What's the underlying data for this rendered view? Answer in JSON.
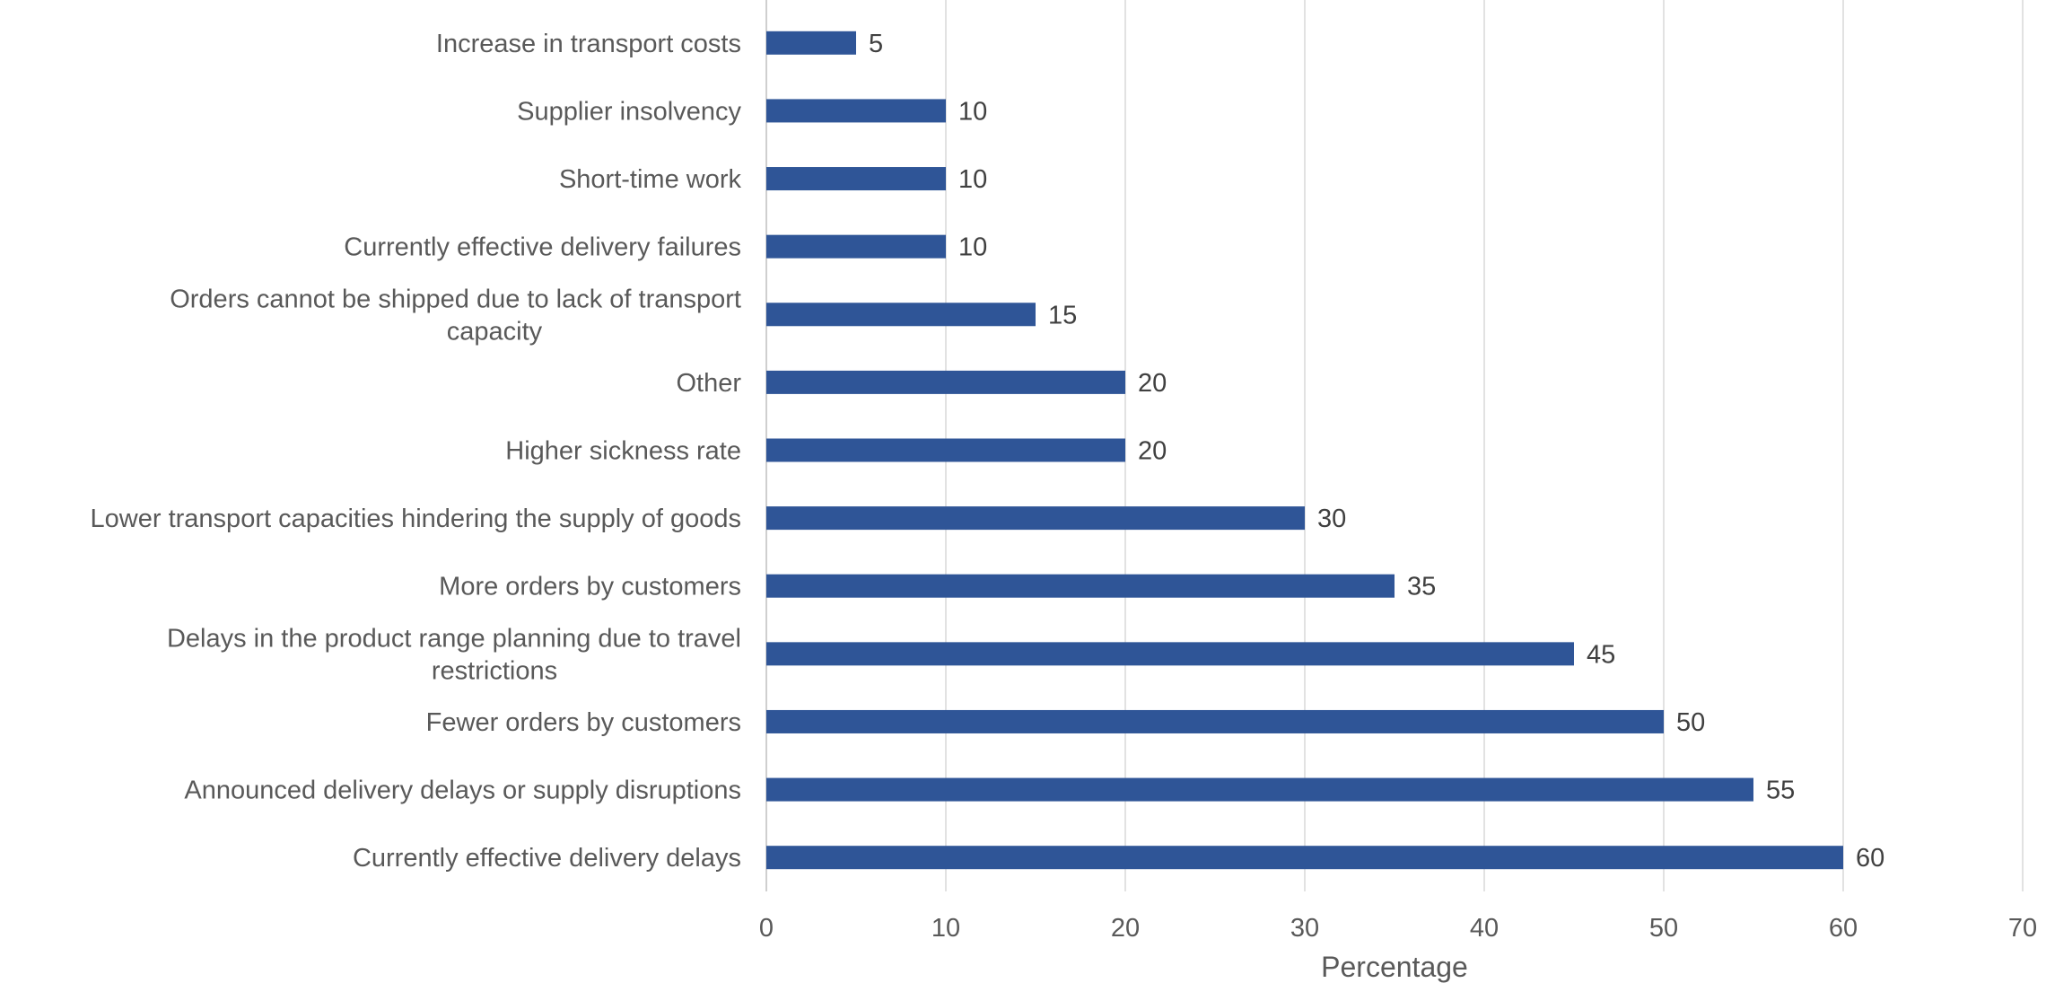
{
  "chart_data": {
    "type": "bar",
    "orientation": "horizontal",
    "categories": [
      "Increase in transport costs",
      "Supplier insolvency",
      "Short-time work",
      "Currently effective delivery failures",
      "Orders cannot be shipped due to lack of transport capacity",
      "Other ",
      "Higher sickness rate",
      "Lower transport capacities hindering the supply of goods",
      "More orders by customers",
      "Delays in the product range planning due to travel restrictions",
      "Fewer orders by customers",
      "Announced delivery delays or supply disruptions",
      "Currently effective delivery delays"
    ],
    "values": [
      5,
      10,
      10,
      10,
      15,
      20,
      20,
      30,
      35,
      45,
      50,
      55,
      60
    ],
    "title": "",
    "xlabel": "Percentage",
    "ylabel": "",
    "xlim": [
      0,
      70
    ],
    "xticks": [
      0,
      10,
      20,
      30,
      40,
      50,
      60,
      70
    ],
    "grid": "vertical",
    "data_labels": true,
    "legend": "none",
    "bar_color": "#2F5597",
    "grid_color": "#D9D9D9"
  }
}
